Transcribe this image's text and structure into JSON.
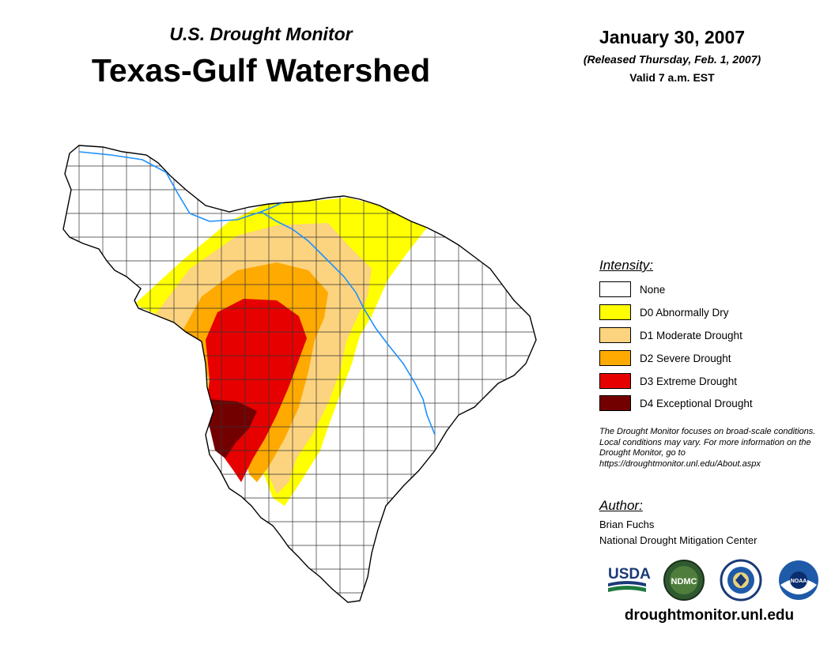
{
  "header": {
    "subtitle": "U.S. Drought Monitor",
    "title": "Texas-Gulf Watershed",
    "date": "January 30, 2007",
    "released": "(Released Thursday, Feb. 1, 2007)",
    "valid": "Valid 7 a.m. EST"
  },
  "legend": {
    "title": "Intensity:",
    "items": [
      {
        "label": "None",
        "color": "#ffffff"
      },
      {
        "label": "D0 Abnormally Dry",
        "color": "#ffff00"
      },
      {
        "label": "D1 Moderate Drought",
        "color": "#fcd37f"
      },
      {
        "label": "D2 Severe Drought",
        "color": "#ffaa00"
      },
      {
        "label": "D3 Extreme Drought",
        "color": "#e60000"
      },
      {
        "label": "D4 Exceptional Drought",
        "color": "#730000"
      }
    ]
  },
  "note": "The Drought Monitor focuses on broad-scale conditions. Local conditions may vary. For more information on the Drought Monitor, go to https://droughtmonitor.unl.edu/About.aspx",
  "author": {
    "title": "Author:",
    "name": "Brian Fuchs",
    "org": "National Drought Mitigation Center"
  },
  "logos": {
    "usda": "USDA",
    "ndmc": "NDMC",
    "noaa": "NOAA"
  },
  "url": "droughtmonitor.unl.edu",
  "colors": {
    "river": "#1e90ff",
    "county_lines": "#333333"
  }
}
